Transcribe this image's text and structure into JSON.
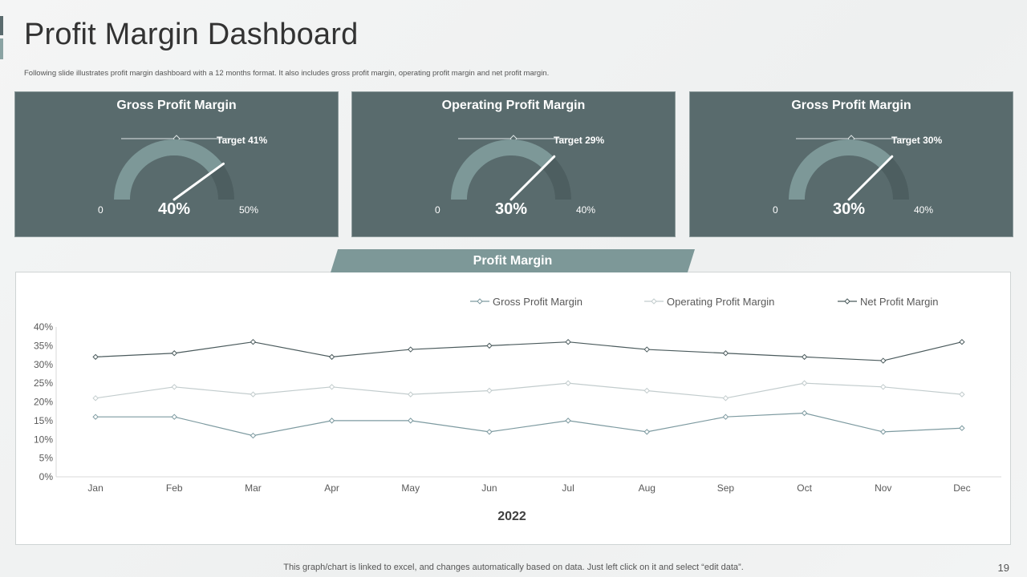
{
  "title": "Profit Margin Dashboard",
  "subtitle": "Following slide illustrates profit margin dashboard with a 12 months format. It also includes gross profit margin, operating profit margin and net profit margin.",
  "colors": {
    "card_bg": "#596b6d",
    "gauge_fill": "#7d9898",
    "gauge_track": "#4d5e60",
    "gross_line": "#7d9aa0",
    "operating_line": "#c2cccd",
    "net_line": "#4a5a5c"
  },
  "kpis": [
    {
      "title": "Gross Profit Margin",
      "target_label": "Target 41%",
      "min_label": "0",
      "max_label": "50%",
      "value_label": "40%",
      "value": 40,
      "max": 50,
      "target": 41
    },
    {
      "title": "Operating Profit Margin",
      "target_label": "Target 29%",
      "min_label": "0",
      "max_label": "40%",
      "value_label": "30%",
      "value": 30,
      "max": 40,
      "target": 29
    },
    {
      "title": "Gross Profit Margin",
      "target_label": "Target 30%",
      "min_label": "0",
      "max_label": "40%",
      "value_label": "30%",
      "value": 30,
      "max": 40,
      "target": 30
    }
  ],
  "section_label": "Profit Margin",
  "chart_data": {
    "type": "line",
    "title": "Profit Margin",
    "xlabel": "2022",
    "ylabel": "",
    "ylim": [
      0,
      40
    ],
    "yticks": [
      "0%",
      "5%",
      "10%",
      "15%",
      "20%",
      "25%",
      "30%",
      "35%",
      "40%"
    ],
    "categories": [
      "Jan",
      "Feb",
      "Mar",
      "Apr",
      "May",
      "Jun",
      "Jul",
      "Aug",
      "Sep",
      "Oct",
      "Nov",
      "Dec"
    ],
    "legend_position": "top-right",
    "series": [
      {
        "name": "Gross Profit Margin",
        "values": [
          16,
          16,
          11,
          15,
          15,
          12,
          15,
          12,
          16,
          17,
          12,
          13
        ]
      },
      {
        "name": "Operating Profit Margin",
        "values": [
          21,
          24,
          22,
          24,
          22,
          23,
          25,
          23,
          21,
          25,
          24,
          22
        ]
      },
      {
        "name": "Net Profit Margin",
        "values": [
          32,
          33,
          36,
          32,
          34,
          35,
          36,
          34,
          33,
          32,
          31,
          36
        ]
      }
    ]
  },
  "footer": "This graph/chart is linked to excel,  and changes automatically based on data. Just left click on it and select “edit data”.",
  "page_number": "19"
}
